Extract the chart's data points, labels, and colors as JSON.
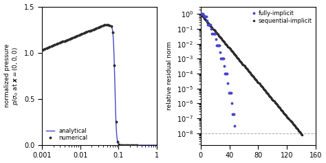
{
  "fig_width": 4.74,
  "fig_height": 2.37,
  "dpi": 100,
  "bg_color": "#ffffff",
  "left_ylabel": "normalized pressure\n$p/\\sigma_0$ at $\\boldsymbol{x} = (0,0,0)$",
  "left_xlim": [
    0.001,
    1.0
  ],
  "left_ylim": [
    0.0,
    1.5
  ],
  "left_yticks": [
    0.0,
    0.5,
    1.0,
    1.5
  ],
  "left_xticks": [
    0.001,
    0.01,
    0.1,
    1.0
  ],
  "left_xtick_labels": [
    "0.001",
    "0.01",
    "0.1",
    "1"
  ],
  "analytical_color": "#4444cc",
  "numerical_color": "#2a2a2a",
  "analytical_label": "analytical",
  "numerical_label": "numerical",
  "right_ylabel": "relative residual norm",
  "right_xlim": [
    0,
    160
  ],
  "right_xticks": [
    0,
    40,
    80,
    120,
    160
  ],
  "fully_implicit_color": "#4444cc",
  "sequential_implicit_color": "#2a2a2a",
  "fully_implicit_label": "fully-implicit",
  "sequential_implicit_label": "sequential-implicit",
  "hline_color": "#aaaaaa",
  "hline_y": 1e-08
}
